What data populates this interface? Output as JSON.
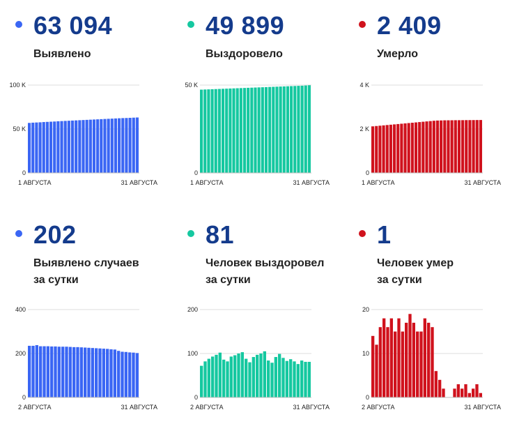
{
  "colors": {
    "blue": "#3a66f4",
    "green": "#15c8a0",
    "red": "#d0121d",
    "number": "#143b8c"
  },
  "panels": [
    {
      "value": "63 094",
      "label": [
        "Выявлено",
        ""
      ],
      "color": "blue"
    },
    {
      "value": "49 899",
      "label": [
        "Выздоровело",
        ""
      ],
      "color": "green"
    },
    {
      "value": "2 409",
      "label": [
        "Умерло",
        ""
      ],
      "color": "red"
    },
    {
      "value": "202",
      "label": [
        "Выявлено случаев",
        "за сутки"
      ],
      "color": "blue"
    },
    {
      "value": "81",
      "label": [
        "Человек выздоровел",
        "за сутки"
      ],
      "color": "green"
    },
    {
      "value": "1",
      "label": [
        "Человек умер",
        "за сутки"
      ],
      "color": "red"
    }
  ],
  "chart_data": [
    {
      "type": "bar",
      "series_color": "blue",
      "ylim": [
        0,
        100000
      ],
      "yticks": [
        0,
        50000,
        100000
      ],
      "ytick_labels": [
        "0",
        "50 K",
        "100 K"
      ],
      "x_start_label": "1 АВГУСТА",
      "x_end_label": "31 АВГУСТА",
      "values": [
        56900,
        57200,
        57400,
        57600,
        57900,
        58100,
        58300,
        58500,
        58800,
        59000,
        59200,
        59400,
        59600,
        59800,
        60000,
        60200,
        60400,
        60600,
        60800,
        61000,
        61200,
        61400,
        61600,
        61800,
        62000,
        62200,
        62400,
        62500,
        62700,
        62900,
        63094
      ]
    },
    {
      "type": "bar",
      "series_color": "green",
      "ylim": [
        0,
        50000
      ],
      "yticks": [
        0,
        50000
      ],
      "ytick_labels": [
        "0",
        "50 K"
      ],
      "x_start_label": "1 АВГУСТА",
      "x_end_label": "31 АВГУСТА",
      "values": [
        47400,
        47480,
        47560,
        47640,
        47720,
        47800,
        47880,
        47960,
        48040,
        48120,
        48200,
        48280,
        48360,
        48440,
        48520,
        48600,
        48680,
        48760,
        48840,
        48920,
        49000,
        49080,
        49160,
        49240,
        49320,
        49400,
        49480,
        49560,
        49640,
        49760,
        49899
      ]
    },
    {
      "type": "bar",
      "series_color": "red",
      "ylim": [
        0,
        4000
      ],
      "yticks": [
        0,
        2000,
        4000
      ],
      "ytick_labels": [
        "0",
        "2 K",
        "4 K"
      ],
      "x_start_label": "1 АВГУСТА",
      "x_end_label": "31 АВГУСТА",
      "values": [
        2120,
        2135,
        2150,
        2165,
        2180,
        2195,
        2210,
        2225,
        2240,
        2255,
        2270,
        2285,
        2300,
        2315,
        2330,
        2345,
        2360,
        2375,
        2385,
        2390,
        2395,
        2396,
        2398,
        2400,
        2401,
        2402,
        2404,
        2405,
        2406,
        2408,
        2409
      ]
    },
    {
      "type": "bar",
      "series_color": "blue",
      "ylim": [
        0,
        400
      ],
      "yticks": [
        0,
        200,
        400
      ],
      "ytick_labels": [
        "0",
        "200",
        "400"
      ],
      "x_start_label": "2 АВГУСТА",
      "x_end_label": "31 АВГУСТА",
      "values": [
        235,
        235,
        238,
        233,
        233,
        233,
        232,
        232,
        231,
        231,
        231,
        230,
        229,
        229,
        228,
        227,
        226,
        225,
        224,
        223,
        222,
        221,
        219,
        218,
        212,
        208,
        207,
        205,
        204,
        202
      ]
    },
    {
      "type": "bar",
      "series_color": "green",
      "ylim": [
        0,
        200
      ],
      "yticks": [
        0,
        100,
        200
      ],
      "ytick_labels": [
        "0",
        "100",
        "200"
      ],
      "x_start_label": "2 АВГУСТА",
      "x_end_label": "31 АВГУСТА",
      "values": [
        72,
        82,
        88,
        93,
        97,
        102,
        86,
        82,
        93,
        96,
        100,
        103,
        88,
        80,
        92,
        97,
        100,
        105,
        84,
        79,
        92,
        99,
        90,
        83,
        87,
        82,
        76,
        84,
        81,
        81
      ]
    },
    {
      "type": "bar",
      "series_color": "red",
      "ylim": [
        0,
        20
      ],
      "yticks": [
        0,
        10,
        20
      ],
      "ytick_labels": [
        "0",
        "10",
        "20"
      ],
      "x_start_label": "2 АВГУСТА",
      "x_end_label": "31 АВГУСТА",
      "values": [
        14,
        12,
        16,
        18,
        16,
        18,
        15,
        18,
        15,
        17,
        19,
        17,
        15,
        15,
        18,
        17,
        16,
        6,
        4,
        2,
        0,
        0,
        2,
        3,
        2,
        3,
        1,
        2,
        3,
        1
      ]
    }
  ]
}
